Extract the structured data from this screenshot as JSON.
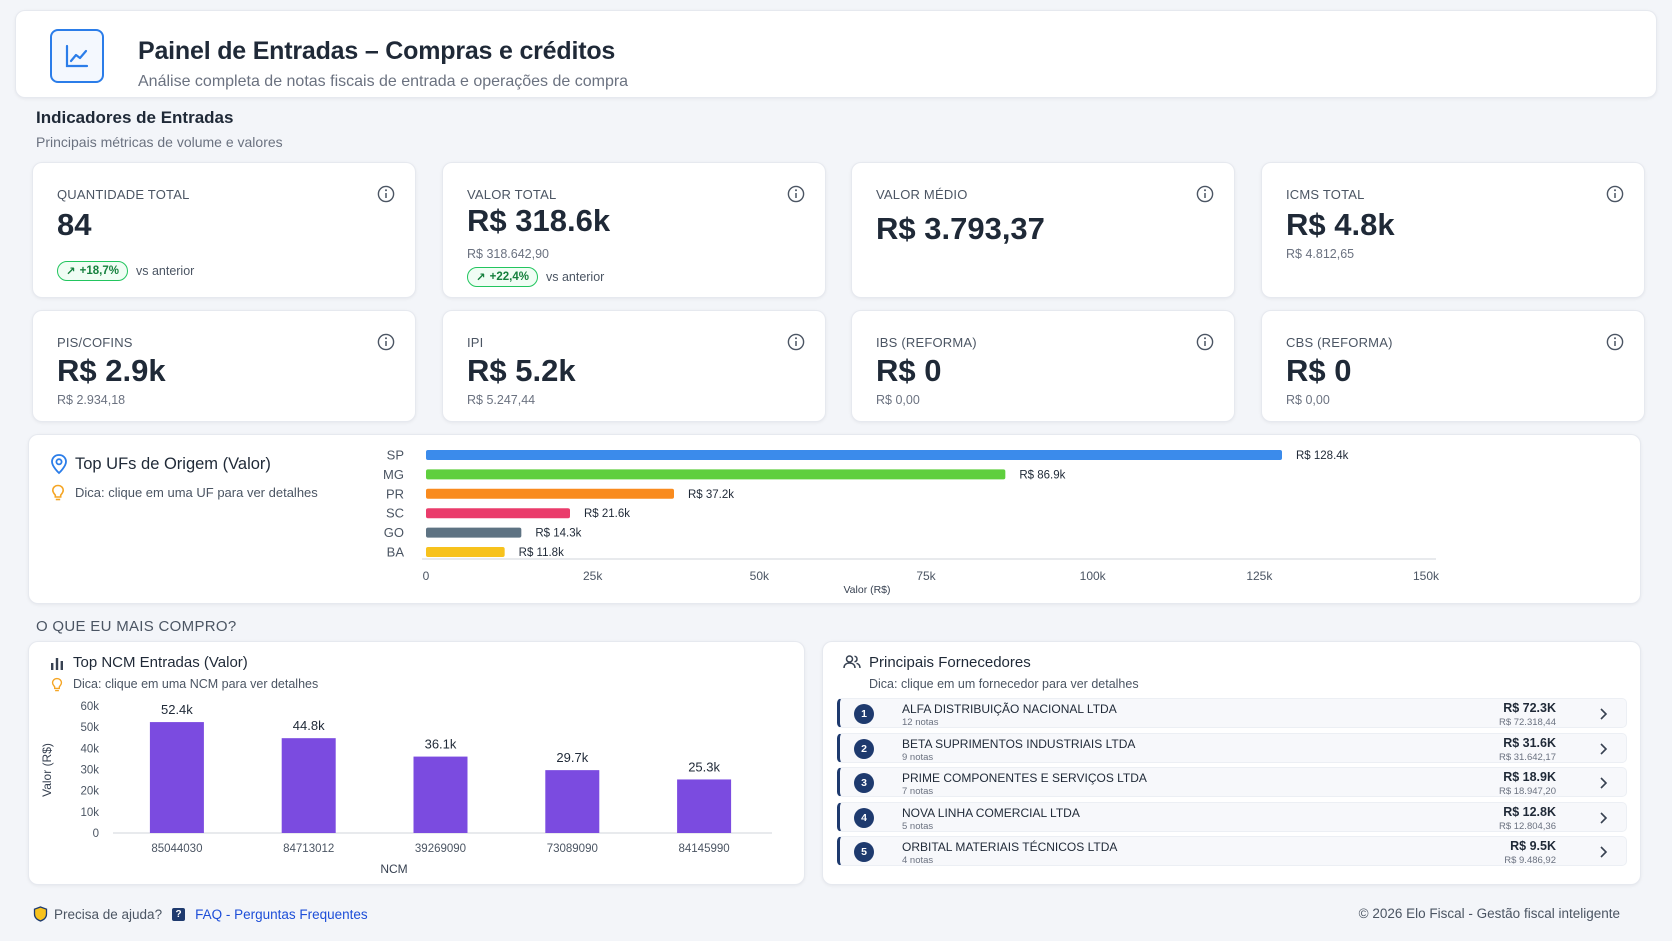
{
  "header": {
    "title": "Painel de Entradas – Compras e créditos",
    "subtitle": "Análise completa de notas fiscais de entrada e operações de compra",
    "logo_icon": "line-chart-icon"
  },
  "indicators": {
    "title": "Indicadores de Entradas",
    "subtitle": "Principais métricas de volume e valores"
  },
  "kpis": [
    {
      "label": "QUANTIDADE TOTAL",
      "value": "84",
      "detail": "",
      "trend": "+18,7%",
      "trend_suffix": "vs anterior"
    },
    {
      "label": "VALOR TOTAL",
      "value": "R$ 318.6k",
      "detail": "R$ 318.642,90",
      "trend": "+22,4%",
      "trend_suffix": "vs anterior"
    },
    {
      "label": "VALOR MÉDIO",
      "value": "R$ 3.793,37",
      "detail": "",
      "trend": "",
      "trend_suffix": ""
    },
    {
      "label": "ICMS TOTAL",
      "value": "R$ 4.8k",
      "detail": "R$ 4.812,65",
      "trend": "",
      "trend_suffix": ""
    },
    {
      "label": "PIS/COFINS",
      "value": "R$ 2.9k",
      "detail": "R$ 2.934,18",
      "trend": "",
      "trend_suffix": ""
    },
    {
      "label": "IPI",
      "value": "R$ 5.2k",
      "detail": "R$ 5.247,44",
      "trend": "",
      "trend_suffix": ""
    },
    {
      "label": "IBS (REFORMA)",
      "value": "R$ 0",
      "detail": "R$ 0,00",
      "trend": "",
      "trend_suffix": ""
    },
    {
      "label": "CBS (REFORMA)",
      "value": "R$ 0",
      "detail": "R$ 0,00",
      "trend": "",
      "trend_suffix": ""
    }
  ],
  "uf_chart": {
    "title": "Top UFs de Origem (Valor)",
    "hint": "Dica: clique em uma UF para ver detalhes"
  },
  "section_bought": "O QUE EU MAIS COMPRO?",
  "ncm_chart": {
    "title": "Top NCM Entradas (Valor)",
    "hint": "Dica: clique em uma NCM para ver detalhes"
  },
  "suppliers": {
    "title": "Principais Fornecedores",
    "hint": "Dica: clique em um fornecedor para ver detalhes",
    "items": [
      {
        "rank": "1",
        "name": "ALFA DISTRIBUIÇÃO NACIONAL LTDA",
        "notes": "12 notas",
        "value": "R$ 72.3K",
        "value_full": "R$ 72.318,44"
      },
      {
        "rank": "2",
        "name": "BETA SUPRIMENTOS INDUSTRIAIS LTDA",
        "notes": "9 notas",
        "value": "R$ 31.6K",
        "value_full": "R$ 31.642,17"
      },
      {
        "rank": "3",
        "name": "PRIME COMPONENTES E SERVIÇOS LTDA",
        "notes": "7 notas",
        "value": "R$ 18.9K",
        "value_full": "R$ 18.947,20"
      },
      {
        "rank": "4",
        "name": "NOVA LINHA COMERCIAL LTDA",
        "notes": "5 notas",
        "value": "R$ 12.8K",
        "value_full": "R$ 12.804,36"
      },
      {
        "rank": "5",
        "name": "ORBITAL MATERIAIS TÉCNICOS LTDA",
        "notes": "4 notas",
        "value": "R$ 9.5K",
        "value_full": "R$ 9.486,92"
      }
    ]
  },
  "footer": {
    "help": "Precisa de ajuda?",
    "faq": "FAQ - Perguntas Frequentes",
    "copyright": "© 2026 Elo Fiscal - Gestão fiscal inteligente"
  },
  "chart_data": [
    {
      "type": "bar",
      "orientation": "horizontal",
      "categories": [
        "SP",
        "MG",
        "PR",
        "SC",
        "GO",
        "BA"
      ],
      "values": [
        128.4,
        86.9,
        37.2,
        21.6,
        14.3,
        11.8
      ],
      "data_labels": [
        "R$ 128.4k",
        "R$ 86.9k",
        "R$ 37.2k",
        "R$ 21.6k",
        "R$ 14.3k",
        "R$ 11.8k"
      ],
      "colors": [
        "#3b8beb",
        "#5fcf3e",
        "#f98b1e",
        "#ea3c6b",
        "#5e7383",
        "#f7c21d"
      ],
      "xlabel": "Valor (R$)",
      "xticks": [
        "0",
        "25k",
        "50k",
        "75k",
        "100k",
        "125k",
        "150k"
      ],
      "xlim": [
        0,
        150
      ]
    },
    {
      "type": "bar",
      "categories": [
        "85044030",
        "84713012",
        "39269090",
        "73089090",
        "84145990"
      ],
      "values": [
        52.4,
        44.8,
        36.1,
        29.7,
        25.3
      ],
      "data_labels": [
        "52.4k",
        "44.8k",
        "36.1k",
        "29.7k",
        "25.3k"
      ],
      "color": "#7b4be0",
      "xlabel": "NCM",
      "ylabel": "Valor (R$)",
      "yticks": [
        "0",
        "10k",
        "20k",
        "30k",
        "40k",
        "50k",
        "60k"
      ],
      "ylim": [
        0,
        60
      ]
    }
  ]
}
